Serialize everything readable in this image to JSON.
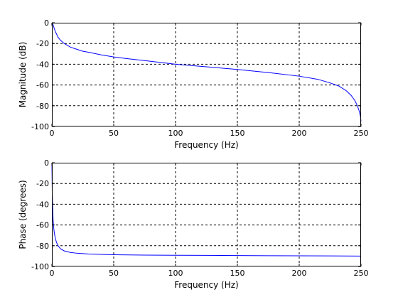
{
  "chart_data": [
    {
      "type": "line",
      "xlabel": "Frequency (Hz)",
      "ylabel": "Magnitude (dB)",
      "xlim": [
        0,
        250
      ],
      "ylim": [
        -100,
        0
      ],
      "xticks": [
        0,
        50,
        100,
        150,
        200,
        250
      ],
      "yticks": [
        0,
        -20,
        -40,
        -60,
        -80,
        -100
      ],
      "tick_labels_x": [
        "0",
        "50",
        "100",
        "150",
        "200",
        "250"
      ],
      "tick_labels_y": [
        "0",
        "-20",
        "-40",
        "-60",
        "-80",
        "-100"
      ],
      "grid": true,
      "series": [
        {
          "color": "#0000ff",
          "x": [
            0,
            1,
            2,
            3,
            5,
            7,
            10,
            15,
            20,
            25,
            30,
            40,
            50,
            60,
            75,
            100,
            125,
            150,
            175,
            200,
            215,
            225,
            232,
            238,
            242,
            245,
            247,
            248.5,
            249.5,
            250
          ],
          "y": [
            0,
            -2,
            -6,
            -9,
            -14,
            -17,
            -20,
            -23.5,
            -25.5,
            -27.5,
            -28.5,
            -31,
            -33,
            -34.5,
            -36.5,
            -40,
            -42.5,
            -45,
            -48,
            -51.5,
            -54.5,
            -58,
            -61,
            -65.5,
            -70,
            -75,
            -80,
            -85,
            -90,
            -95
          ]
        }
      ]
    },
    {
      "type": "line",
      "xlabel": "Frequency (Hz)",
      "ylabel": "Phase (degrees)",
      "xlim": [
        0,
        250
      ],
      "ylim": [
        -100,
        0
      ],
      "xticks": [
        0,
        50,
        100,
        150,
        200,
        250
      ],
      "yticks": [
        0,
        -20,
        -40,
        -60,
        -80,
        -100
      ],
      "tick_labels_x": [
        "0",
        "50",
        "100",
        "150",
        "200",
        "250"
      ],
      "tick_labels_y": [
        "0",
        "-20",
        "-40",
        "-60",
        "-80",
        "-100"
      ],
      "grid": true,
      "series": [
        {
          "color": "#0000ff",
          "x": [
            0,
            0.3,
            0.6,
            1,
            1.5,
            2,
            3,
            4,
            5,
            7,
            10,
            15,
            20,
            30,
            40,
            50,
            75,
            100,
            125,
            150,
            175,
            200,
            225,
            250
          ],
          "y": [
            0,
            -30,
            -42,
            -55,
            -63,
            -68,
            -74,
            -77.5,
            -80,
            -83,
            -85,
            -86.5,
            -87.2,
            -88,
            -88.4,
            -88.7,
            -89,
            -89.2,
            -89.3,
            -89.5,
            -89.6,
            -89.7,
            -89.8,
            -90
          ]
        }
      ]
    }
  ]
}
